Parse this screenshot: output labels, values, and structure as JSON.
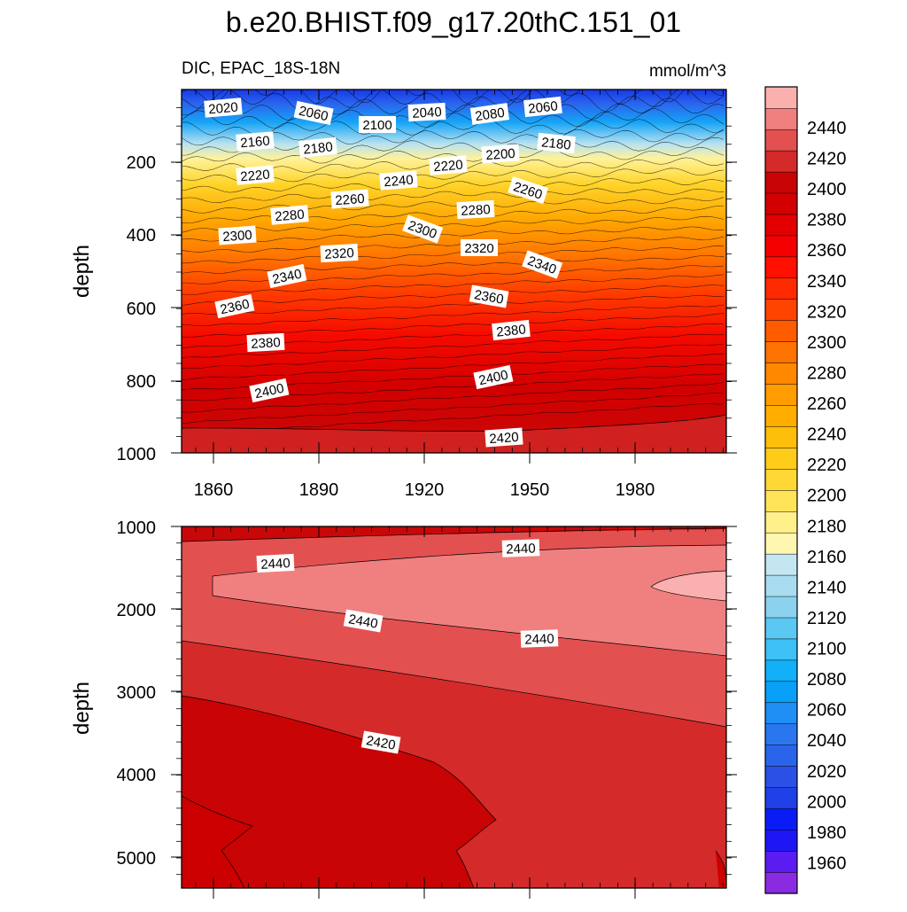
{
  "chart_data": {
    "type": "contour",
    "title": "b.e20.BHIST.f09_g17.20thC.151_01",
    "subtitle_left": "DIC, EPAC_18S-18N",
    "units": "mmol/m^3",
    "xlabel": "",
    "x_ticks": [
      "1860",
      "1890",
      "1920",
      "1950",
      "1980"
    ],
    "xlim": [
      1850,
      2005
    ],
    "top_panel": {
      "ylabel": "depth",
      "ylim": [
        0,
        1000
      ],
      "y_ticks": [
        "200",
        "400",
        "600",
        "800",
        "1000"
      ],
      "contour_labels": [
        "2020",
        "2060",
        "2100",
        "2040",
        "2080",
        "2060",
        "2160",
        "2180",
        "2180",
        "2200",
        "2220",
        "2220",
        "2240",
        "2260",
        "2260",
        "2280",
        "2280",
        "2300",
        "2300",
        "2320",
        "2320",
        "2340",
        "2340",
        "2360",
        "2360",
        "2380",
        "2380",
        "2400",
        "2400",
        "2420"
      ]
    },
    "bottom_panel": {
      "ylabel": "depth",
      "ylim": [
        1000,
        5375
      ],
      "y_ticks": [
        "1000",
        "2000",
        "3000",
        "4000",
        "5000"
      ],
      "contour_labels": [
        "2440",
        "2440",
        "2440",
        "2440",
        "2420"
      ]
    },
    "colorbar": {
      "levels": [
        "1960",
        "1980",
        "2000",
        "2020",
        "2040",
        "2060",
        "2080",
        "2100",
        "2120",
        "2140",
        "2160",
        "2180",
        "2200",
        "2220",
        "2240",
        "2260",
        "2280",
        "2300",
        "2320",
        "2340",
        "2360",
        "2380",
        "2400",
        "2420",
        "2440"
      ],
      "colors": [
        "#8a2be2",
        "#5a1cf0",
        "#1f16f5",
        "#0a1cf5",
        "#2040e8",
        "#2a50e6",
        "#2a64ea",
        "#2a76ee",
        "#1f8ef5",
        "#08a0f8",
        "#12b0f8",
        "#3cc0f5",
        "#5ac8f2",
        "#8cd2ee",
        "#a8dcf0",
        "#c4e6f2",
        "#fff6b0",
        "#fff08a",
        "#ffe45a",
        "#ffd835",
        "#ffcc1a",
        "#ffbe0a",
        "#ffae00",
        "#ff9c00",
        "#ff8800",
        "#ff7300",
        "#ff5c00",
        "#ff4400",
        "#ff2a00",
        "#ff1000",
        "#f40000",
        "#e20000",
        "#d20000",
        "#c80404",
        "#d42a2a",
        "#e35050",
        "#f08080",
        "#fbb0b0"
      ]
    }
  }
}
